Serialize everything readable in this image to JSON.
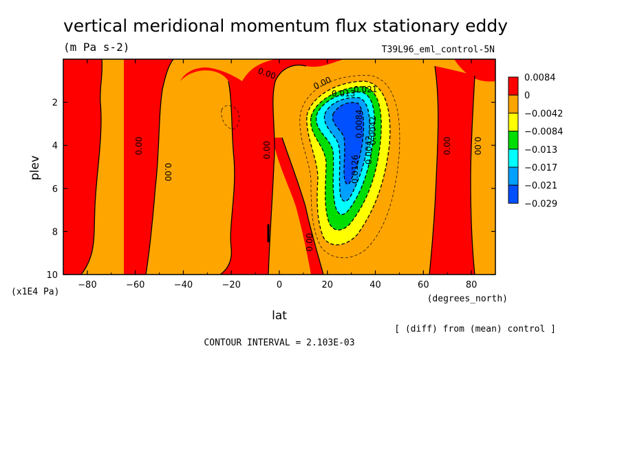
{
  "chart_data": {
    "type": "heatmap",
    "title": "vertical meridional momentum flux stationary eddy",
    "units": "(m Pa s-2)",
    "run_label": "T39L96_eml_control-5N",
    "xlabel": "lat",
    "x_units": "(degrees_north)",
    "ylabel": "plev",
    "y_units": "(x1E4 Pa)",
    "x_ticks": [
      "−80",
      "−60",
      "−40",
      "−20",
      "0",
      "20",
      "40",
      "60",
      "80"
    ],
    "x_tick_values": [
      -80,
      -60,
      -40,
      -20,
      0,
      20,
      40,
      60,
      80
    ],
    "y_ticks": [
      "2",
      "4",
      "6",
      "8",
      "10"
    ],
    "y_tick_values": [
      2,
      4,
      6,
      8,
      10
    ],
    "xlim": [
      -90,
      90
    ],
    "ylim": [
      10,
      0
    ],
    "diff_note": "[ (diff) from (mean) control ]",
    "contour_interval": "CONTOUR INTERVAL = 2.103E-03",
    "colorbar": {
      "labels": [
        "0.0084",
        "0",
        "−0.0042",
        "−0.0084",
        "−0.013",
        "−0.017",
        "−0.021",
        "−0.029"
      ],
      "colors": [
        "#ff0000",
        "#ffa500",
        "#ffff00",
        "#00dd00",
        "#00ffff",
        "#00a0ff",
        "#0050ff"
      ]
    },
    "contour_labels": [
      "0.00",
      "0.00",
      "0.00",
      "0.00",
      "0.00",
      "0.00",
      "0.00",
      "0.00",
      "0.00",
      "0.00",
      "0.013",
      "0.021",
      "0.0084",
      "0.0042",
      "0.0126",
      "0.0042"
    ]
  }
}
